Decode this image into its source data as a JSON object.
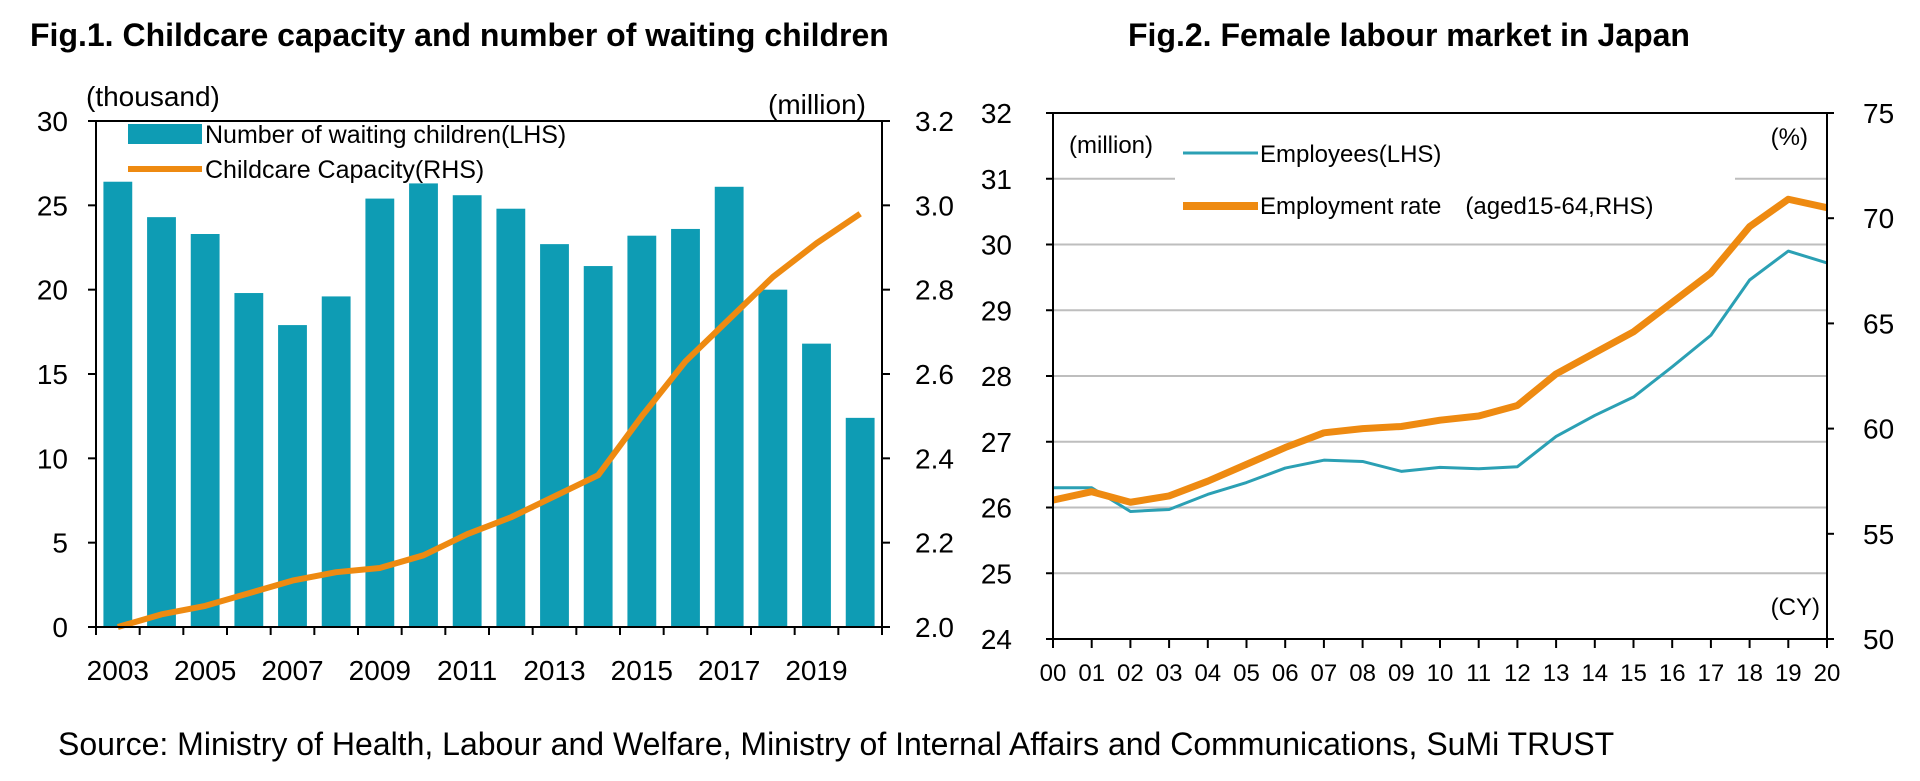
{
  "colors": {
    "bar": "#0E9CB4",
    "capacity": "#EE8A11",
    "employees": "#2BA0B4",
    "rate": "#EE8A11",
    "grid": "#BEBEBE"
  },
  "chart_data": [
    {
      "type": "bar+line",
      "title": "Fig.1. Childcare capacity and number of waiting children",
      "left_unit": "(thousand)",
      "right_unit": "(million)",
      "x_tick_labels": [
        "2003",
        "2005",
        "2007",
        "2009",
        "2011",
        "2013",
        "2015",
        "2017",
        "2019"
      ],
      "left_ticks": [
        "0",
        "5",
        "10",
        "15",
        "20",
        "25",
        "30"
      ],
      "right_ticks": [
        "2.0",
        "2.2",
        "2.4",
        "2.6",
        "2.8",
        "3.0",
        "3.2"
      ],
      "ylim_left": [
        0,
        30
      ],
      "ylim_right": [
        2.0,
        3.2
      ],
      "categories": [
        2003,
        2004,
        2005,
        2006,
        2007,
        2008,
        2009,
        2010,
        2011,
        2012,
        2013,
        2014,
        2015,
        2016,
        2017,
        2018,
        2019,
        2020
      ],
      "series": [
        {
          "name": "Number of waiting children(LHS)",
          "kind": "bar",
          "axis": "left",
          "values": [
            26.4,
            24.3,
            23.3,
            19.8,
            17.9,
            19.6,
            25.4,
            26.3,
            25.6,
            24.8,
            22.7,
            21.4,
            23.2,
            23.6,
            26.1,
            20.0,
            16.8,
            12.4
          ]
        },
        {
          "name": "Childcare Capacity(RHS)",
          "kind": "line",
          "axis": "right",
          "values": [
            2.0,
            2.03,
            2.05,
            2.08,
            2.11,
            2.13,
            2.14,
            2.17,
            2.22,
            2.26,
            2.31,
            2.36,
            2.5,
            2.63,
            2.73,
            2.83,
            2.91,
            2.98
          ]
        }
      ]
    },
    {
      "type": "line",
      "title": "Fig.2. Female labour market in Japan",
      "left_unit": "(million)",
      "right_unit": "(%)",
      "x_unit": "(CY)",
      "left_ticks": [
        "24",
        "25",
        "26",
        "27",
        "28",
        "29",
        "30",
        "31",
        "32"
      ],
      "right_ticks": [
        "50",
        "55",
        "60",
        "65",
        "70",
        "75"
      ],
      "ylim_left": [
        24,
        32
      ],
      "ylim_right": [
        50,
        75
      ],
      "x": [
        "00",
        "01",
        "02",
        "03",
        "04",
        "05",
        "06",
        "07",
        "08",
        "09",
        "10",
        "11",
        "12",
        "13",
        "14",
        "15",
        "16",
        "17",
        "18",
        "19",
        "20"
      ],
      "series": [
        {
          "name": "Employees(LHS)",
          "axis": "left",
          "values": [
            26.3,
            26.3,
            25.94,
            25.97,
            26.2,
            26.38,
            26.6,
            26.72,
            26.7,
            26.55,
            26.61,
            26.59,
            26.62,
            27.08,
            27.4,
            27.68,
            28.14,
            28.62,
            29.46,
            29.9,
            29.72
          ]
        },
        {
          "name": "Employment rate　(aged15-64,RHS)",
          "axis": "right",
          "values": [
            56.6,
            57.0,
            56.5,
            56.8,
            57.5,
            58.3,
            59.1,
            59.8,
            60.0,
            60.1,
            60.4,
            60.6,
            61.1,
            62.6,
            63.6,
            64.6,
            66.0,
            67.4,
            69.6,
            70.9,
            70.5
          ]
        }
      ]
    }
  ],
  "source": "Source: Ministry of Health, Labour and Welfare, Ministry of Internal Affairs and Communications, SuMi TRUST"
}
